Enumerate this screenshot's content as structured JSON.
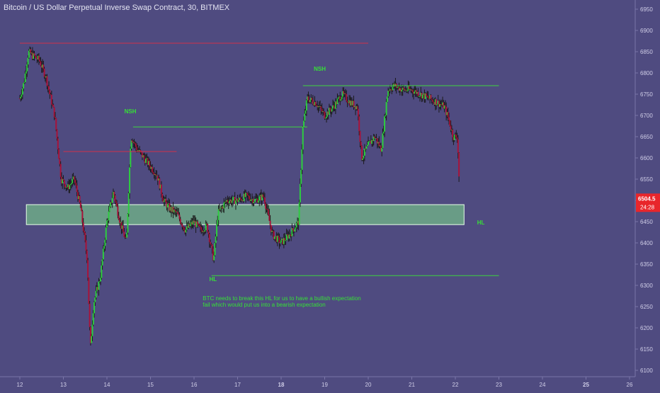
{
  "header": {
    "title": "Bitcoin / US Dollar Perpetual Inverse Swap Contract, 30, BITMEX"
  },
  "colors": {
    "background": "#4f4b80",
    "candle_up": "#2ecc40",
    "candle_down": "#a8133a",
    "wick": "#1a1a1a",
    "resistance_line": "#d0304a",
    "support_line": "#3fd33f",
    "zone_fill": "#7fe08a",
    "label_green": "#36e036",
    "price_tag": "#e8262b",
    "axis_text": "#cfcde6"
  },
  "chart_data": {
    "type": "candlestick",
    "title": "Bitcoin / US Dollar Perpetual Inverse Swap Contract, 30, BITMEX",
    "ylim": [
      6080,
      6960
    ],
    "y_ticks": [
      6100,
      6150,
      6200,
      6250,
      6300,
      6350,
      6400,
      6450,
      6500,
      6550,
      6600,
      6650,
      6700,
      6750,
      6800,
      6850,
      6900,
      6950
    ],
    "x_ticks": [
      "12",
      "13",
      "14",
      "15",
      "16",
      "17",
      "18",
      "19",
      "20",
      "21",
      "22",
      "23",
      "24",
      "25",
      "26"
    ],
    "bold_x_ticks": [
      "18",
      "25"
    ],
    "last_price": "6504.5",
    "countdown": "24:28",
    "close_path": [
      [
        12.0,
        6740
      ],
      [
        12.1,
        6780
      ],
      [
        12.2,
        6850
      ],
      [
        12.3,
        6840
      ],
      [
        12.45,
        6830
      ],
      [
        12.6,
        6790
      ],
      [
        12.8,
        6700
      ],
      [
        12.95,
        6550
      ],
      [
        13.1,
        6530
      ],
      [
        13.25,
        6550
      ],
      [
        13.4,
        6480
      ],
      [
        13.55,
        6360
      ],
      [
        13.62,
        6150
      ],
      [
        13.7,
        6260
      ],
      [
        13.85,
        6320
      ],
      [
        14.0,
        6450
      ],
      [
        14.15,
        6520
      ],
      [
        14.3,
        6450
      ],
      [
        14.45,
        6400
      ],
      [
        14.55,
        6650
      ],
      [
        14.7,
        6620
      ],
      [
        14.85,
        6600
      ],
      [
        15.0,
        6580
      ],
      [
        15.15,
        6560
      ],
      [
        15.3,
        6500
      ],
      [
        15.45,
        6480
      ],
      [
        15.6,
        6470
      ],
      [
        15.8,
        6430
      ],
      [
        16.0,
        6450
      ],
      [
        16.15,
        6430
      ],
      [
        16.3,
        6440
      ],
      [
        16.45,
        6360
      ],
      [
        16.55,
        6470
      ],
      [
        16.75,
        6500
      ],
      [
        17.0,
        6500
      ],
      [
        17.2,
        6510
      ],
      [
        17.4,
        6500
      ],
      [
        17.6,
        6510
      ],
      [
        17.8,
        6420
      ],
      [
        18.0,
        6400
      ],
      [
        18.2,
        6420
      ],
      [
        18.4,
        6450
      ],
      [
        18.5,
        6670
      ],
      [
        18.6,
        6740
      ],
      [
        18.8,
        6730
      ],
      [
        19.0,
        6700
      ],
      [
        19.2,
        6720
      ],
      [
        19.4,
        6750
      ],
      [
        19.6,
        6730
      ],
      [
        19.75,
        6720
      ],
      [
        19.85,
        6600
      ],
      [
        20.0,
        6630
      ],
      [
        20.15,
        6650
      ],
      [
        20.3,
        6620
      ],
      [
        20.45,
        6760
      ],
      [
        20.6,
        6770
      ],
      [
        20.8,
        6760
      ],
      [
        21.0,
        6760
      ],
      [
        21.2,
        6750
      ],
      [
        21.4,
        6740
      ],
      [
        21.6,
        6730
      ],
      [
        21.75,
        6720
      ],
      [
        21.85,
        6690
      ],
      [
        21.95,
        6650
      ],
      [
        22.05,
        6650
      ],
      [
        22.1,
        6510
      ]
    ],
    "horizontal_lines": [
      {
        "kind": "resistance",
        "y": 6870,
        "x0": 12.0,
        "x1": 20.0
      },
      {
        "kind": "resistance",
        "y": 6615,
        "x0": 13.0,
        "x1": 15.6
      },
      {
        "kind": "support",
        "y": 6673,
        "x0": 14.6,
        "x1": 18.6
      },
      {
        "kind": "support",
        "y": 6770,
        "x0": 18.5,
        "x1": 23.0
      },
      {
        "kind": "support",
        "y": 6323,
        "x0": 16.4,
        "x1": 23.0
      }
    ],
    "zone": {
      "y_high": 6490,
      "y_low": 6443,
      "x0": 12.15,
      "x1": 22.2
    },
    "annotations": [
      {
        "text": "NSH",
        "x": 14.4,
        "y": 6705
      },
      {
        "text": "NSH",
        "x": 18.75,
        "y": 6805
      },
      {
        "text": "HL",
        "x": 16.35,
        "y": 6310
      },
      {
        "text": "HL",
        "x": 22.5,
        "y": 6443
      }
    ],
    "note_lines": [
      "BTC needs to break this HL for us to have a bullish expectation",
      "fail which would put us into a bearish expectation"
    ],
    "note_position": {
      "x": 16.2,
      "y": 6265
    }
  }
}
